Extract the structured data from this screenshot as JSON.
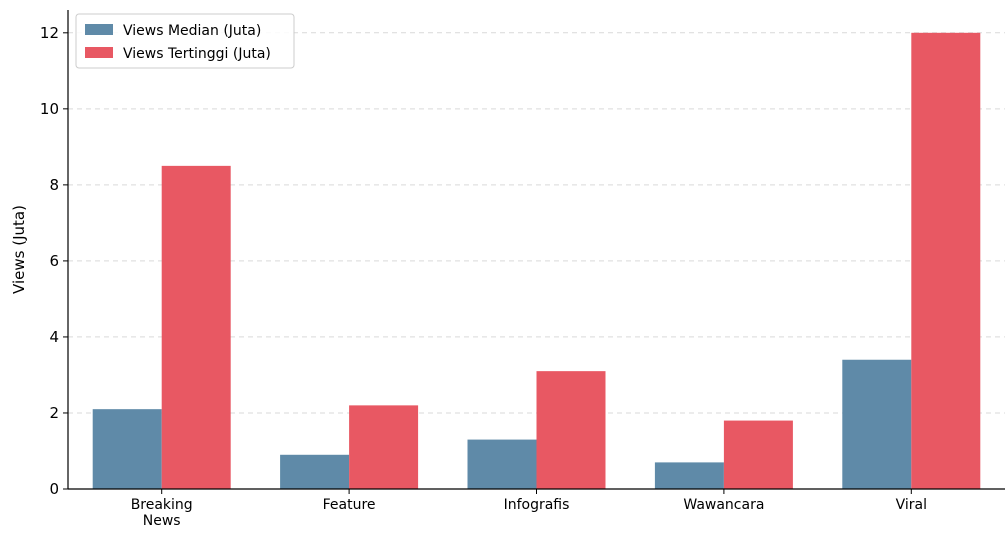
{
  "chart_data": {
    "type": "bar",
    "title": "",
    "xlabel": "",
    "ylabel": "Views (Juta)",
    "categories": [
      "Breaking News",
      "Feature",
      "Infografis",
      "Wawancara",
      "Viral"
    ],
    "series": [
      {
        "name": "Views Median (Juta)",
        "color": "#5f8aa8",
        "values": [
          2.1,
          0.9,
          1.3,
          0.7,
          3.4
        ]
      },
      {
        "name": "Views Tertinggi (Juta)",
        "color": "#e85863",
        "values": [
          8.5,
          2.2,
          3.1,
          1.8,
          12.0
        ]
      }
    ],
    "ylim": [
      0,
      12.6
    ],
    "yticks": [
      0,
      2,
      4,
      6,
      8,
      10,
      12
    ],
    "grid": "horizontal-dashed",
    "legend_position": "top-left"
  }
}
